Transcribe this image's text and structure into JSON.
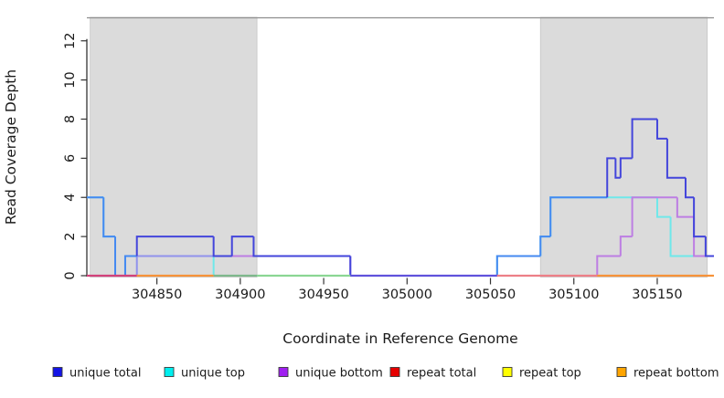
{
  "chart_data": {
    "type": "line",
    "step": true,
    "title": "",
    "xlabel": "Coordinate in Reference Genome",
    "ylabel": "Read Coverage Depth",
    "xlim": [
      304808,
      305184
    ],
    "ylim": [
      0,
      13.2
    ],
    "x_ticks": [
      304850,
      304900,
      304950,
      305000,
      305050,
      305100,
      305150
    ],
    "y_ticks": [
      0,
      2,
      4,
      6,
      8,
      10,
      12
    ],
    "grid": false,
    "legend_position": "bottom",
    "background_color": "#ffffff",
    "repeat_region_color": "#dbdbdb",
    "repeat_regions": [
      [
        304810,
        304910
      ],
      [
        305080,
        305180
      ]
    ],
    "series": [
      {
        "name": "repeat total",
        "color": "#e05050",
        "steps": [
          [
            304808,
            0
          ]
        ]
      },
      {
        "name": "repeat top",
        "color": "#f5e63c",
        "steps": [
          [
            304808,
            0
          ]
        ]
      },
      {
        "name": "repeat bottom",
        "color": "#f79239",
        "steps": [
          [
            304808,
            0
          ]
        ]
      },
      {
        "name": "unique top",
        "color": "#6fe8ea",
        "steps": [
          [
            304808,
            4
          ],
          [
            304818,
            2
          ],
          [
            304825,
            0
          ],
          [
            304831,
            1
          ],
          [
            304884,
            0
          ],
          [
            305054,
            1
          ],
          [
            305080,
            2
          ],
          [
            305086,
            4
          ],
          [
            305150,
            3
          ],
          [
            305158,
            1
          ]
        ]
      },
      {
        "name": "unique bottom",
        "color": "#bd7ee3",
        "alt_color": "#9092ec",
        "steps": [
          [
            304808,
            0
          ],
          [
            304838,
            1,
            "alt"
          ],
          [
            304884,
            1
          ],
          [
            304966,
            0
          ],
          [
            305114,
            1
          ],
          [
            305128,
            2
          ],
          [
            305135,
            4
          ],
          [
            305162,
            3
          ],
          [
            305172,
            1
          ]
        ]
      },
      {
        "name": "unique total",
        "color": "#4345db",
        "alt_color": "#4589f1",
        "steps": [
          [
            304808,
            4,
            "alt"
          ],
          [
            304818,
            2,
            "alt"
          ],
          [
            304825,
            0,
            "alt"
          ],
          [
            304831,
            1,
            "alt"
          ],
          [
            304838,
            2
          ],
          [
            304884,
            1
          ],
          [
            304895,
            2
          ],
          [
            304908,
            1
          ],
          [
            304966,
            0
          ],
          [
            305054,
            1,
            "alt"
          ],
          [
            305080,
            2,
            "alt"
          ],
          [
            305086,
            4,
            "alt"
          ],
          [
            305120,
            6
          ],
          [
            305125,
            5
          ],
          [
            305128,
            6
          ],
          [
            305135,
            8
          ],
          [
            305150,
            7
          ],
          [
            305156,
            5
          ],
          [
            305167,
            4
          ],
          [
            305172,
            2
          ],
          [
            305179,
            1
          ]
        ]
      }
    ],
    "baseline_segments": [
      {
        "from": 304808,
        "to": 304838,
        "color": "#d2417b"
      },
      {
        "from": 304838,
        "to": 304884,
        "color": "#f79239"
      },
      {
        "from": 304884,
        "to": 304910,
        "color": "#7eb88c"
      },
      {
        "from": 304910,
        "to": 304966,
        "color": "#8bd693"
      },
      {
        "from": 304966,
        "to": 305054,
        "color": "#6052dc"
      },
      {
        "from": 305054,
        "to": 305114,
        "color": "#ed7f87"
      },
      {
        "from": 305114,
        "to": 305184,
        "color": "#f79239"
      }
    ],
    "legend": [
      {
        "label": "unique total",
        "color": "#1414e6"
      },
      {
        "label": "unique top",
        "color": "#00eeee"
      },
      {
        "label": "unique bottom",
        "color": "#a020f0"
      },
      {
        "label": "repeat total",
        "color": "#e60000"
      },
      {
        "label": "repeat top",
        "color": "#ffff00"
      },
      {
        "label": "repeat bottom",
        "color": "#ffa500"
      }
    ]
  }
}
